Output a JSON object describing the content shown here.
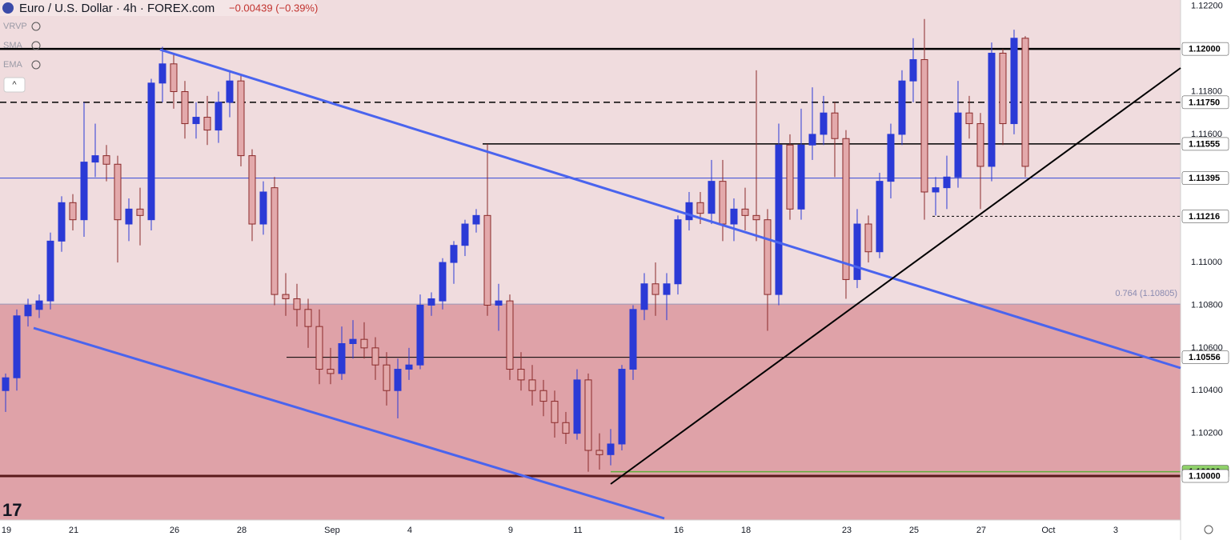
{
  "chart_data": {
    "type": "candlestick",
    "title": "Euro / U.S. Dollar · 4h · FOREX.com",
    "change": "−0.00439 (−0.39%)",
    "indicators": [
      "VRVP",
      "SMA",
      "EMA"
    ],
    "up_color": "#2b3ad6",
    "down_color": "#e3a9ab",
    "down_border": "#8a2a2a",
    "ylim": [
      1.09794,
      1.12229
    ],
    "yticks": [
      {
        "value": 1.122,
        "label": "1.12200"
      },
      {
        "value": 1.118,
        "label": "1.11800"
      },
      {
        "value": 1.116,
        "label": "1.11600"
      },
      {
        "value": 1.11,
        "label": "1.11000"
      },
      {
        "value": 1.108,
        "label": "1.10800"
      },
      {
        "value": 1.106,
        "label": "1.10600"
      },
      {
        "value": 1.104,
        "label": "1.10400"
      },
      {
        "value": 1.102,
        "label": "1.10200"
      }
    ],
    "xlim": [
      0,
      105.36
    ],
    "xticks": [
      {
        "value": 0.57,
        "label": "19"
      },
      {
        "value": 6.57,
        "label": "21"
      },
      {
        "value": 15.57,
        "label": "26"
      },
      {
        "value": 21.57,
        "label": "28"
      },
      {
        "value": 29.64,
        "label": "Sep"
      },
      {
        "value": 36.57,
        "label": "4"
      },
      {
        "value": 45.57,
        "label": "9"
      },
      {
        "value": 51.57,
        "label": "11"
      },
      {
        "value": 60.57,
        "label": "16"
      },
      {
        "value": 66.57,
        "label": "18"
      },
      {
        "value": 75.57,
        "label": "23"
      },
      {
        "value": 81.57,
        "label": "25"
      },
      {
        "value": 87.57,
        "label": "27"
      },
      {
        "value": 93.57,
        "label": "Oct"
      },
      {
        "value": 99.57,
        "label": "3"
      }
    ],
    "zone": {
      "value": 1.10805,
      "label": "0.764 (1.10805)",
      "upper_color": "#f0dcde",
      "lower_color": "#dfa2a8"
    },
    "levels": [
      {
        "value": 1.12,
        "label": "1.12000",
        "color": "#000000",
        "style": "solid",
        "width": 2.5
      },
      {
        "value": 1.1175,
        "label": "1.11750",
        "color": "#000000",
        "style": "dashed",
        "width": 1.5
      },
      {
        "value": 1.11555,
        "label": "1.11555",
        "color": "#000000",
        "style": "solid",
        "width": 1.5
      },
      {
        "value": 1.11395,
        "label": "1.11395",
        "color": "#3447d6",
        "style": "solid",
        "width": 1
      },
      {
        "value": 1.11216,
        "label": "1.11216",
        "color": "#000000",
        "style": "dotted",
        "width": 1
      },
      {
        "value": 1.10556,
        "label": "1.10556",
        "color": "#000000",
        "style": "solid",
        "width": 1
      },
      {
        "value": 1.1002,
        "label": "1.10020",
        "color": "#5fae3a",
        "style": "solid",
        "width": 1.5
      },
      {
        "value": 1.1,
        "label": "1.10000",
        "color": "#5a1a1a",
        "style": "solid",
        "width": 3
      }
    ],
    "ohlc": [
      [
        1.104,
        1.1048,
        1.103,
        1.1046
      ],
      [
        1.1046,
        1.1078,
        1.104,
        1.1075
      ],
      [
        1.1075,
        1.1083,
        1.107,
        1.108
      ],
      [
        1.1078,
        1.1085,
        1.1074,
        1.1082
      ],
      [
        1.1082,
        1.1114,
        1.1078,
        1.111
      ],
      [
        1.111,
        1.1131,
        1.1105,
        1.1128
      ],
      [
        1.1128,
        1.1132,
        1.1115,
        1.112
      ],
      [
        1.112,
        1.1175,
        1.1112,
        1.1147
      ],
      [
        1.1147,
        1.1165,
        1.114,
        1.115
      ],
      [
        1.115,
        1.1155,
        1.1138,
        1.1146
      ],
      [
        1.1146,
        1.115,
        1.11,
        1.112
      ],
      [
        1.1118,
        1.113,
        1.111,
        1.1125
      ],
      [
        1.1125,
        1.1135,
        1.1108,
        1.1122
      ],
      [
        1.112,
        1.1186,
        1.1115,
        1.1184
      ],
      [
        1.1184,
        1.1201,
        1.1175,
        1.1193
      ],
      [
        1.1193,
        1.1198,
        1.1172,
        1.118
      ],
      [
        1.118,
        1.1185,
        1.1158,
        1.1165
      ],
      [
        1.1165,
        1.1175,
        1.1158,
        1.1168
      ],
      [
        1.1168,
        1.1178,
        1.1155,
        1.1162
      ],
      [
        1.1162,
        1.118,
        1.1156,
        1.1175
      ],
      [
        1.1175,
        1.119,
        1.1168,
        1.1185
      ],
      [
        1.1185,
        1.1188,
        1.1145,
        1.115
      ],
      [
        1.115,
        1.1153,
        1.111,
        1.1118
      ],
      [
        1.1118,
        1.1138,
        1.1113,
        1.1133
      ],
      [
        1.1135,
        1.114,
        1.108,
        1.1085
      ],
      [
        1.1085,
        1.1095,
        1.1075,
        1.1083
      ],
      [
        1.1083,
        1.109,
        1.107,
        1.1078
      ],
      [
        1.1078,
        1.1083,
        1.106,
        1.107
      ],
      [
        1.107,
        1.1078,
        1.1043,
        1.105
      ],
      [
        1.105,
        1.106,
        1.1043,
        1.1048
      ],
      [
        1.1048,
        1.107,
        1.1045,
        1.1062
      ],
      [
        1.1062,
        1.1073,
        1.1055,
        1.1064
      ],
      [
        1.1064,
        1.1072,
        1.1055,
        1.106
      ],
      [
        1.106,
        1.1065,
        1.1045,
        1.1052
      ],
      [
        1.1052,
        1.1058,
        1.1033,
        1.104
      ],
      [
        1.104,
        1.1055,
        1.1027,
        1.105
      ],
      [
        1.105,
        1.106,
        1.1045,
        1.1052
      ],
      [
        1.1052,
        1.1085,
        1.105,
        1.108
      ],
      [
        1.108,
        1.1086,
        1.1075,
        1.1083
      ],
      [
        1.1082,
        1.1102,
        1.1078,
        1.11
      ],
      [
        1.11,
        1.111,
        1.109,
        1.1108
      ],
      [
        1.1108,
        1.112,
        1.1103,
        1.1118
      ],
      [
        1.1118,
        1.1125,
        1.1114,
        1.1122
      ],
      [
        1.1122,
        1.11555,
        1.1075,
        1.108
      ],
      [
        1.108,
        1.109,
        1.1068,
        1.1082
      ],
      [
        1.1082,
        1.1085,
        1.1045,
        1.105
      ],
      [
        1.105,
        1.1058,
        1.104,
        1.1045
      ],
      [
        1.1045,
        1.1052,
        1.1033,
        1.104
      ],
      [
        1.104,
        1.1045,
        1.1028,
        1.1035
      ],
      [
        1.1035,
        1.104,
        1.1018,
        1.1025
      ],
      [
        1.1025,
        1.103,
        1.1015,
        1.102
      ],
      [
        1.102,
        1.105,
        1.1017,
        1.1045
      ],
      [
        1.1045,
        1.1048,
        1.1002,
        1.1012
      ],
      [
        1.1012,
        1.102,
        1.1003,
        1.101
      ],
      [
        1.101,
        1.1022,
        1.1005,
        1.1015
      ],
      [
        1.1015,
        1.1052,
        1.1012,
        1.105
      ],
      [
        1.105,
        1.108,
        1.1045,
        1.1078
      ],
      [
        1.1078,
        1.1095,
        1.1073,
        1.109
      ],
      [
        1.109,
        1.11,
        1.1075,
        1.1085
      ],
      [
        1.1085,
        1.1095,
        1.1073,
        1.109
      ],
      [
        1.109,
        1.1122,
        1.1085,
        1.112
      ],
      [
        1.112,
        1.1133,
        1.1115,
        1.1128
      ],
      [
        1.1128,
        1.1133,
        1.1118,
        1.1123
      ],
      [
        1.1123,
        1.1148,
        1.1118,
        1.1138
      ],
      [
        1.1138,
        1.1148,
        1.111,
        1.1118
      ],
      [
        1.1118,
        1.113,
        1.111,
        1.1125
      ],
      [
        1.1125,
        1.1135,
        1.1115,
        1.1122
      ],
      [
        1.1122,
        1.119,
        1.111,
        1.112
      ],
      [
        1.112,
        1.1125,
        1.1068,
        1.1085
      ],
      [
        1.1085,
        1.1165,
        1.108,
        1.1155
      ],
      [
        1.1155,
        1.116,
        1.112,
        1.1125
      ],
      [
        1.1125,
        1.1172,
        1.112,
        1.1155
      ],
      [
        1.1155,
        1.1182,
        1.1148,
        1.116
      ],
      [
        1.116,
        1.1178,
        1.1155,
        1.117
      ],
      [
        1.117,
        1.1175,
        1.114,
        1.1158
      ],
      [
        1.1158,
        1.1162,
        1.1083,
        1.1092
      ],
      [
        1.1092,
        1.1125,
        1.1088,
        1.1118
      ],
      [
        1.1118,
        1.1122,
        1.11,
        1.1105
      ],
      [
        1.1105,
        1.1142,
        1.1102,
        1.1138
      ],
      [
        1.1138,
        1.1165,
        1.113,
        1.116
      ],
      [
        1.116,
        1.119,
        1.1155,
        1.1185
      ],
      [
        1.1185,
        1.1205,
        1.1175,
        1.1195
      ],
      [
        1.1195,
        1.1214,
        1.112,
        1.1133
      ],
      [
        1.1133,
        1.114,
        1.1122,
        1.1135
      ],
      [
        1.1135,
        1.115,
        1.1125,
        1.114
      ],
      [
        1.114,
        1.1185,
        1.1135,
        1.117
      ],
      [
        1.117,
        1.1178,
        1.1158,
        1.1165
      ],
      [
        1.1165,
        1.117,
        1.1125,
        1.1145
      ],
      [
        1.1145,
        1.1203,
        1.1138,
        1.1198
      ],
      [
        1.1198,
        1.12,
        1.1155,
        1.1165
      ],
      [
        1.1165,
        1.1209,
        1.116,
        1.1205
      ],
      [
        1.1205,
        1.1206,
        1.114,
        1.1145
      ]
    ]
  }
}
